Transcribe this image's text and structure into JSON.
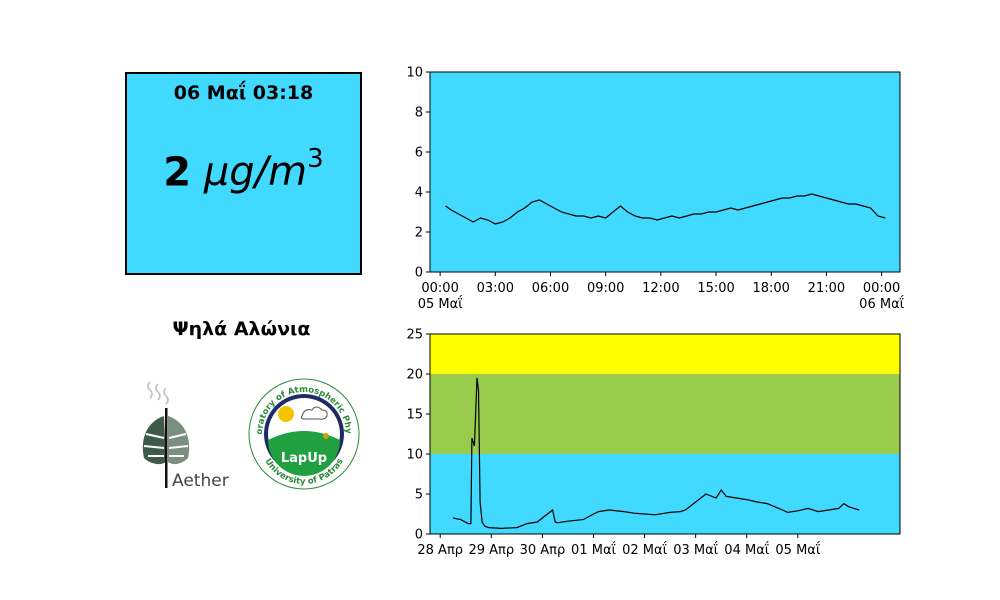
{
  "reading": {
    "timestamp": "06 Μαΐ 03:18",
    "value": "2",
    "unit_base": "μg/m",
    "unit_exp": "3"
  },
  "station": {
    "name": "Ψηλά Αλώνια"
  },
  "logos": {
    "aether": {
      "text": "Aether",
      "icon": "leaf-logo-icon"
    },
    "lapup": {
      "text": "LapUp",
      "ring_text_top": "Laboratory of Atmospheric Physics",
      "ring_text_bottom": "University of Patras",
      "icon": "lapup-seal-icon"
    }
  },
  "colors": {
    "good": "#42d9ff",
    "moderate": "#99cc4c",
    "high": "#ffff00",
    "line": "#000000",
    "box_border": "#000000"
  },
  "chart_data": [
    {
      "type": "line",
      "title": "",
      "xlabel": "",
      "ylabel": "",
      "ylim": [
        0,
        10
      ],
      "yticks": [
        0,
        2,
        4,
        6,
        8,
        10
      ],
      "xlim": [
        -0.55,
        25.0
      ],
      "xticks": [
        {
          "x": 0,
          "label": "00:00",
          "sublabel": "05 Μαΐ"
        },
        {
          "x": 3,
          "label": "03:00",
          "sublabel": ""
        },
        {
          "x": 6,
          "label": "06:00",
          "sublabel": ""
        },
        {
          "x": 9,
          "label": "09:00",
          "sublabel": ""
        },
        {
          "x": 12,
          "label": "12:00",
          "sublabel": ""
        },
        {
          "x": 15,
          "label": "15:00",
          "sublabel": ""
        },
        {
          "x": 18,
          "label": "18:00",
          "sublabel": ""
        },
        {
          "x": 21,
          "label": "21:00",
          "sublabel": ""
        },
        {
          "x": 24,
          "label": "00:00",
          "sublabel": "06 Μαΐ"
        }
      ],
      "background": "#42d9ff",
      "grid": false,
      "series": [
        {
          "x": [
            0.3,
            0.6,
            1.0,
            1.4,
            1.8,
            2.2,
            2.6,
            3.0,
            3.4,
            3.8,
            4.2,
            4.6,
            5.0,
            5.4,
            5.8,
            6.2,
            6.6,
            7.0,
            7.4,
            7.8,
            8.2,
            8.6,
            9.0,
            9.4,
            9.8,
            10.2,
            10.6,
            11.0,
            11.4,
            11.8,
            12.2,
            12.6,
            13.0,
            13.4,
            13.8,
            14.2,
            14.6,
            15.0,
            15.4,
            15.8,
            16.2,
            16.6,
            17.0,
            17.4,
            17.8,
            18.2,
            18.6,
            19.0,
            19.4,
            19.8,
            20.2,
            20.6,
            21.0,
            21.4,
            21.8,
            22.2,
            22.6,
            23.0,
            23.4,
            23.8,
            24.2
          ],
          "y": [
            3.3,
            3.1,
            2.9,
            2.7,
            2.5,
            2.7,
            2.6,
            2.4,
            2.5,
            2.7,
            3.0,
            3.2,
            3.5,
            3.6,
            3.4,
            3.2,
            3.0,
            2.9,
            2.8,
            2.8,
            2.7,
            2.8,
            2.7,
            3.0,
            3.3,
            3.0,
            2.8,
            2.7,
            2.7,
            2.6,
            2.7,
            2.8,
            2.7,
            2.8,
            2.9,
            2.9,
            3.0,
            3.0,
            3.1,
            3.2,
            3.1,
            3.2,
            3.3,
            3.4,
            3.5,
            3.6,
            3.7,
            3.7,
            3.8,
            3.8,
            3.9,
            3.8,
            3.7,
            3.6,
            3.5,
            3.4,
            3.4,
            3.3,
            3.2,
            2.8,
            2.7
          ]
        }
      ]
    },
    {
      "type": "line",
      "title": "",
      "xlabel": "",
      "ylabel": "",
      "ylim": [
        0,
        25
      ],
      "yticks": [
        0,
        5,
        10,
        15,
        20,
        25
      ],
      "xlim": [
        -0.2,
        9.0
      ],
      "xticks": [
        {
          "x": 0,
          "label": "28 Απρ"
        },
        {
          "x": 1,
          "label": "29 Απρ"
        },
        {
          "x": 2,
          "label": "30 Απρ"
        },
        {
          "x": 3,
          "label": "01 Μαΐ"
        },
        {
          "x": 4,
          "label": "02 Μαΐ"
        },
        {
          "x": 5,
          "label": "03 Μαΐ"
        },
        {
          "x": 6,
          "label": "04 Μαΐ"
        },
        {
          "x": 7,
          "label": "05 Μαΐ"
        }
      ],
      "bands": [
        {
          "from": 0,
          "to": 10,
          "color": "#42d9ff"
        },
        {
          "from": 10,
          "to": 20,
          "color": "#99cc4c"
        },
        {
          "from": 20,
          "to": 25,
          "color": "#ffff00"
        }
      ],
      "grid": false,
      "series": [
        {
          "x": [
            0.25,
            0.4,
            0.55,
            0.6,
            0.62,
            0.67,
            0.72,
            0.75,
            0.78,
            0.82,
            0.87,
            0.9,
            0.95,
            1.2,
            1.5,
            1.7,
            1.9,
            2.2,
            2.25,
            2.3,
            2.5,
            2.8,
            3.0,
            3.1,
            3.3,
            3.6,
            3.8,
            4.0,
            4.2,
            4.5,
            4.7,
            4.8,
            5.0,
            5.2,
            5.4,
            5.5,
            5.6,
            5.8,
            6.0,
            6.2,
            6.4,
            6.7,
            6.8,
            7.0,
            7.2,
            7.4,
            7.6,
            7.8,
            7.9,
            8.0,
            8.2
          ],
          "y": [
            2.0,
            1.8,
            1.3,
            1.3,
            12.0,
            11.0,
            19.5,
            18.0,
            4.0,
            1.5,
            1.0,
            0.9,
            0.8,
            0.7,
            0.8,
            1.3,
            1.5,
            3.0,
            1.5,
            1.4,
            1.6,
            1.8,
            2.5,
            2.8,
            3.0,
            2.8,
            2.6,
            2.5,
            2.4,
            2.7,
            2.8,
            3.0,
            4.0,
            5.0,
            4.5,
            5.5,
            4.7,
            4.5,
            4.3,
            4.0,
            3.8,
            3.0,
            2.7,
            2.9,
            3.2,
            2.8,
            3.0,
            3.2,
            3.8,
            3.4,
            3.0
          ]
        }
      ]
    }
  ]
}
